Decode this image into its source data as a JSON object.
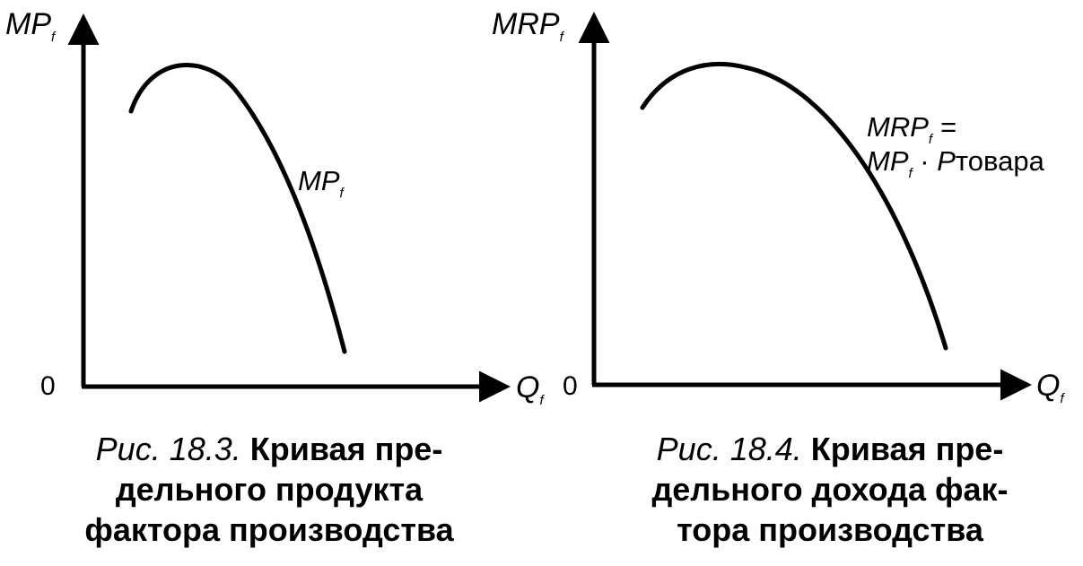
{
  "figures": [
    {
      "y_label_main": "MP",
      "y_label_sub": "f",
      "x_label_main": "Q",
      "x_label_sub": "f",
      "origin": "0",
      "curve_label_main": "MP",
      "curve_label_sub": "f",
      "caption_number": "Рис. 18.3.",
      "caption_lines": [
        "Кривая пре-",
        "дельного продукта",
        "фактора производства"
      ]
    },
    {
      "y_label_main": "MRP",
      "y_label_sub": "f",
      "x_label_main": "Q",
      "x_label_sub": "f",
      "origin": "0",
      "curve_label_line1_main": "MRP",
      "curve_label_line1_sub": "f",
      "curve_label_line1_tail": " =",
      "curve_label_line2_main": "MP",
      "curve_label_line2_sub": "f",
      "curve_label_line2_dot": " · ",
      "curve_label_line2_p": "P",
      "curve_label_line2_tail": "товара",
      "caption_number": "Рис. 18.4.",
      "caption_lines": [
        "Кривая пре-",
        "дельного дохода фак-",
        "тора производства"
      ]
    }
  ]
}
